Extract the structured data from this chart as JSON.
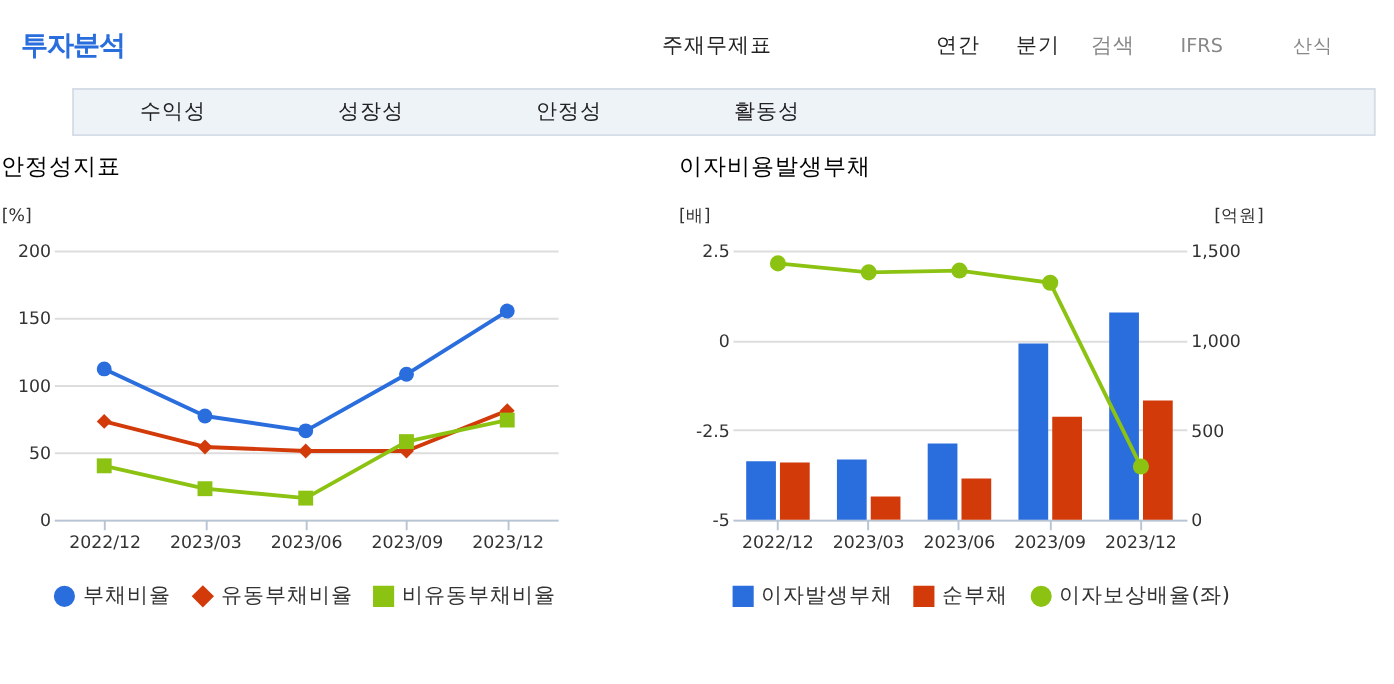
{
  "chart_data": [
    {
      "type": "line",
      "title": "안정성지표",
      "ylabel": "[%]",
      "categories": [
        "2022/12",
        "2023/03",
        "2023/06",
        "2023/09",
        "2023/12"
      ],
      "series": [
        {
          "name": "부채비율",
          "color": "#2a6ddd",
          "marker": "circle",
          "values": [
            112,
            77,
            66,
            108,
            155
          ]
        },
        {
          "name": "유동부채비율",
          "color": "#d23a0a",
          "marker": "diamond",
          "values": [
            73,
            54,
            51,
            51,
            81
          ]
        },
        {
          "name": "비유동부채비율",
          "color": "#8cc312",
          "marker": "square",
          "values": [
            40,
            23,
            16,
            58,
            74
          ]
        }
      ],
      "ylim": [
        0,
        200
      ],
      "yticks": [
        0,
        50,
        100,
        150,
        200
      ],
      "grid": "y",
      "legend": "bottom",
      "annotations": [
        "투자분석",
        "주재무제표",
        "연간",
        "분기",
        "검색",
        "IFRS",
        "산식",
        "수익성",
        "성장성",
        "안정성",
        "활동성"
      ]
    },
    {
      "type": "bar",
      "title": "이자비용발생부채",
      "ylabel": "[배]",
      "y2label": "[억원]",
      "categories": [
        "2022/12",
        "2023/03",
        "2023/06",
        "2023/09",
        "2023/12"
      ],
      "series": [
        {
          "name": "이자발생부채",
          "color": "#2a6ddd",
          "type": "bar",
          "axis": "y2",
          "values": [
            325,
            335,
            425,
            982,
            1155
          ]
        },
        {
          "name": "순부채",
          "color": "#d23a0a",
          "type": "bar",
          "axis": "y2",
          "values": [
            319,
            129,
            229,
            574,
            664
          ]
        },
        {
          "name": "이자보상배율(좌)",
          "color": "#8cc312",
          "type": "line",
          "marker": "circle",
          "values": [
            2.14,
            1.89,
            1.94,
            1.6,
            -3.52
          ]
        }
      ],
      "ylim": [
        -5,
        2.5
      ],
      "yticks": [
        -5,
        -2.5,
        0,
        2.5
      ],
      "y2lim": [
        0,
        1500
      ],
      "y2ticks": [
        0,
        {
          "value": 500,
          "label": "500"
        },
        {
          "value": 1000,
          "label": "1,000"
        },
        {
          "value": 1500,
          "label": "1,500"
        }
      ],
      "grid": "y",
      "legend": "bottom"
    }
  ]
}
